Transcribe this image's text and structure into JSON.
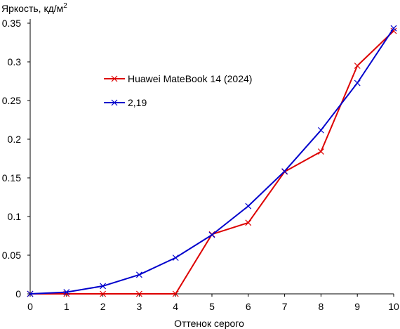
{
  "chart_data": {
    "type": "line",
    "ylabel": "Яркость, кд/м",
    "ylabel_sup": "2",
    "xlabel": "Оттенок серого",
    "xlim": [
      0,
      10
    ],
    "ylim": [
      0,
      0.35
    ],
    "x_ticks": [
      "0",
      "1",
      "2",
      "3",
      "4",
      "5",
      "6",
      "7",
      "8",
      "9",
      "10"
    ],
    "y_ticks": [
      "0",
      "0.05",
      "0.1",
      "0.15",
      "0.2",
      "0.25",
      "0.3",
      "0.35"
    ],
    "grid": false,
    "legend_position": "upper-left-inside",
    "series": [
      {
        "name": "Huawei MateBook 14 (2024)",
        "color": "#dd0000",
        "marker": "x",
        "x": [
          0,
          1,
          2,
          3,
          4,
          5,
          6,
          7,
          8,
          9,
          10
        ],
        "y": [
          0,
          0,
          0,
          0,
          0,
          0.077,
          0.092,
          0.158,
          0.184,
          0.295,
          0.34
        ]
      },
      {
        "name": "2,19",
        "color": "#0000cc",
        "marker": "x",
        "x": [
          0,
          1,
          2,
          3,
          4,
          5,
          6,
          7,
          8,
          9,
          10
        ],
        "y": [
          0,
          0.0022,
          0.0101,
          0.0247,
          0.0467,
          0.0763,
          0.1135,
          0.1585,
          0.2116,
          0.2727,
          0.3435
        ]
      }
    ]
  }
}
